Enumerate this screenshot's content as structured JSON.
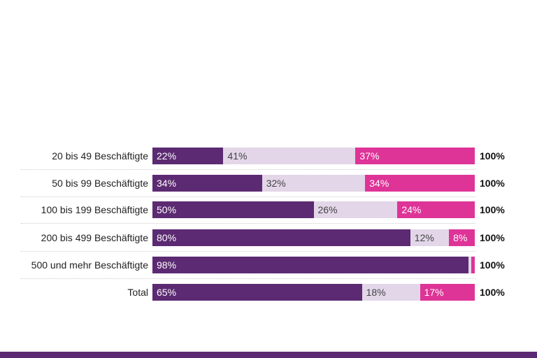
{
  "chart_data": {
    "type": "bar",
    "orientation": "horizontal",
    "stacked": true,
    "categories": [
      "20 bis 49 Beschäftigte",
      "50 bis 99 Beschäftigte",
      "100 bis 199 Beschäftigte",
      "200 bis 499 Beschäftigte",
      "500 und mehr Beschäftigte",
      "Total"
    ],
    "series": [
      {
        "values": [
          22,
          34,
          50,
          80,
          98,
          65
        ],
        "labels": [
          "22%",
          "34%",
          "50%",
          "80%",
          "98%",
          "65%"
        ],
        "color": "#5c2a72",
        "text_color": "#ffffff"
      },
      {
        "values": [
          41,
          32,
          26,
          12,
          1,
          18
        ],
        "labels": [
          "41%",
          "32%",
          "26%",
          "12%",
          "",
          "18%"
        ],
        "color": "#e2d6e8",
        "text_color": "#444444"
      },
      {
        "values": [
          37,
          34,
          24,
          8,
          1,
          17
        ],
        "labels": [
          "37%",
          "34%",
          "24%",
          "8%",
          "",
          "17%"
        ],
        "color": "#de3497",
        "text_color": "#ffffff"
      }
    ],
    "totals": [
      "100%",
      "100%",
      "100%",
      "100%",
      "100%",
      "100%"
    ],
    "xlim": [
      0,
      100
    ],
    "legend": "none",
    "grid": false
  },
  "colors": {
    "footer": "#5c2a72"
  }
}
